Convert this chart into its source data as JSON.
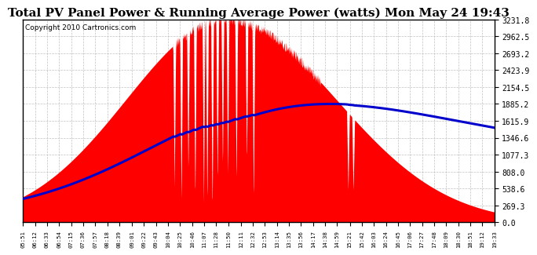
{
  "title": "Total PV Panel Power & Running Average Power (watts) Mon May 24 19:43",
  "copyright": "Copyright 2010 Cartronics.com",
  "y_max": 3231.8,
  "y_min": 0.0,
  "yticks": [
    0.0,
    269.3,
    538.6,
    808.0,
    1077.3,
    1346.6,
    1615.9,
    1885.2,
    2154.5,
    2423.9,
    2693.2,
    2962.5,
    3231.8
  ],
  "background_color": "#ffffff",
  "grid_color": "#bbbbbb",
  "area_color": "#ff0000",
  "line_color": "#0000cc",
  "title_fontsize": 11,
  "copyright_fontsize": 6.5,
  "time_labels": [
    "05:51",
    "06:12",
    "06:33",
    "06:54",
    "07:15",
    "07:36",
    "07:57",
    "08:18",
    "08:39",
    "09:01",
    "09:22",
    "09:43",
    "10:04",
    "10:25",
    "10:46",
    "11:07",
    "11:28",
    "11:50",
    "12:11",
    "12:32",
    "12:53",
    "13:14",
    "13:35",
    "13:56",
    "14:17",
    "14:38",
    "14:59",
    "15:21",
    "15:42",
    "16:03",
    "16:24",
    "16:45",
    "17:06",
    "17:27",
    "17:48",
    "18:09",
    "18:30",
    "18:51",
    "19:12",
    "19:33"
  ]
}
